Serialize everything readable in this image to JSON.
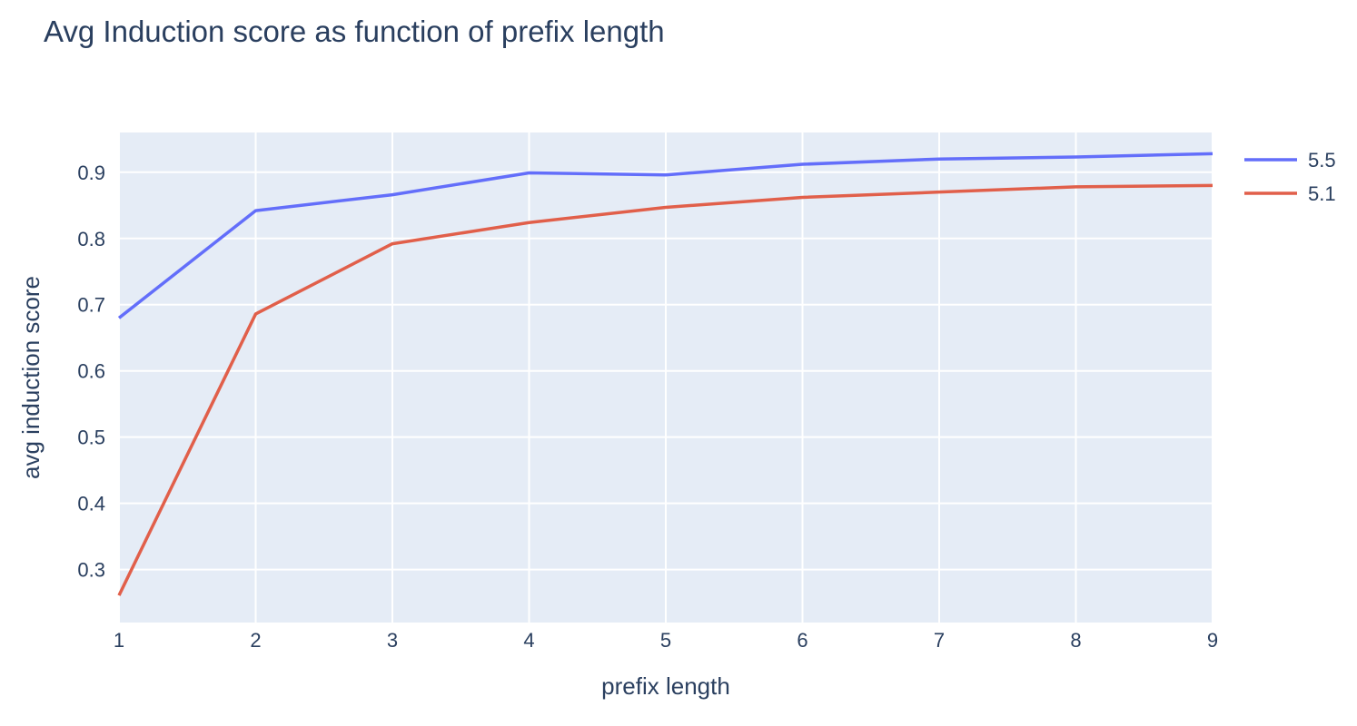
{
  "chart_data": {
    "type": "line",
    "title": "Avg Induction score as function of prefix length",
    "xlabel": "prefix length",
    "ylabel": "avg induction score",
    "x": [
      1,
      2,
      3,
      4,
      5,
      6,
      7,
      8,
      9
    ],
    "xlim": [
      1,
      9
    ],
    "ylim": [
      0.22,
      0.96
    ],
    "xticks": [
      1,
      2,
      3,
      4,
      5,
      6,
      7,
      8,
      9
    ],
    "yticks": [
      0.3,
      0.4,
      0.5,
      0.6,
      0.7,
      0.8,
      0.9
    ],
    "grid": true,
    "legend_position": "top-right",
    "plot_background": "#e5ecf6",
    "grid_color": "#ffffff",
    "series": [
      {
        "name": "5.5",
        "color": "#636efa",
        "values": [
          0.68,
          0.842,
          0.866,
          0.899,
          0.896,
          0.912,
          0.92,
          0.923,
          0.928
        ]
      },
      {
        "name": "5.1",
        "color": "#e15f4a",
        "values": [
          0.261,
          0.686,
          0.792,
          0.824,
          0.847,
          0.862,
          0.87,
          0.878,
          0.88
        ]
      }
    ]
  }
}
